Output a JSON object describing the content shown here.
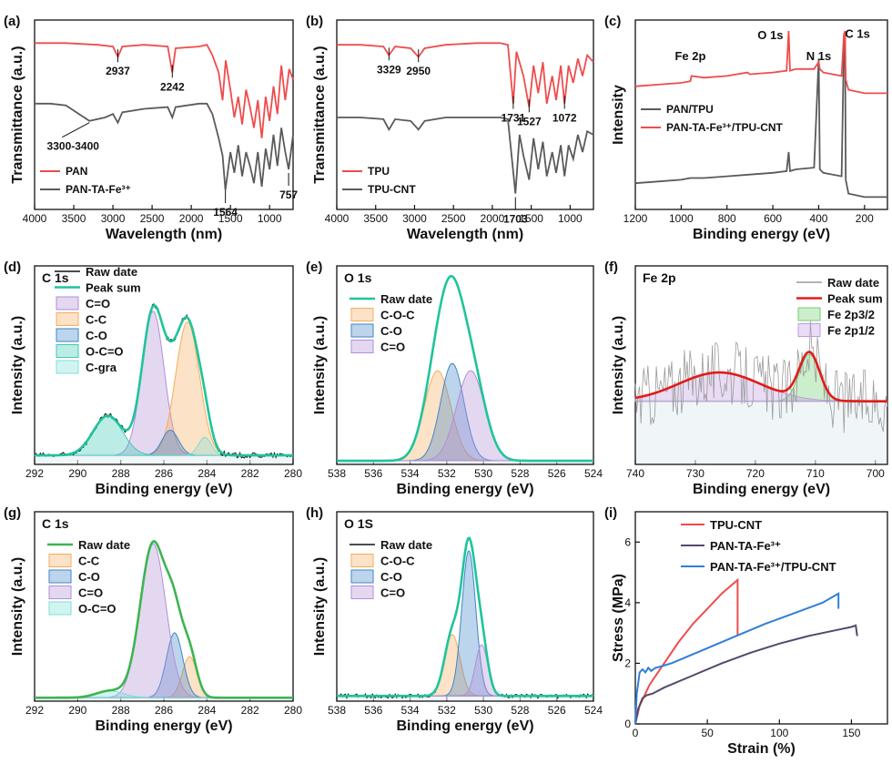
{
  "chart_data": [
    {
      "panel_label": "(a)",
      "type": "line",
      "xlabel": "Wavelength (nm)",
      "ylabel": "Transmittance (a.u.)",
      "xlim": [
        4000,
        700
      ],
      "xticks": [
        "4000",
        "3500",
        "3000",
        "2500",
        "2000",
        "1500",
        "1000"
      ],
      "legend": [
        "PAN",
        "PAN-TA-Fe³⁺"
      ],
      "legend_position": "bottom-left",
      "series": [
        {
          "name": "PAN",
          "color": "#ef4c4c",
          "x": [
            4000,
            3600,
            3200,
            3000,
            2937,
            2880,
            2600,
            2300,
            2242,
            2200,
            1900,
            1800,
            1730,
            1650,
            1600,
            1560,
            1500,
            1450,
            1400,
            1350,
            1300,
            1250,
            1200,
            1150,
            1100,
            1050,
            1000,
            950,
            900,
            850,
            800,
            750,
            700
          ],
          "y": [
            0.93,
            0.93,
            0.92,
            0.91,
            0.85,
            0.91,
            0.92,
            0.91,
            0.76,
            0.9,
            0.91,
            0.92,
            0.86,
            0.76,
            0.6,
            0.83,
            0.66,
            0.5,
            0.62,
            0.46,
            0.66,
            0.56,
            0.44,
            0.6,
            0.38,
            0.62,
            0.48,
            0.68,
            0.52,
            0.8,
            0.6,
            0.78,
            0.72
          ]
        },
        {
          "name": "PAN-TA-Fe³⁺",
          "color": "#5a5a5a",
          "x": [
            4000,
            3800,
            3600,
            3400,
            3300,
            3100,
            3000,
            2937,
            2880,
            2600,
            2300,
            2242,
            2200,
            1900,
            1800,
            1730,
            1650,
            1600,
            1564,
            1500,
            1450,
            1400,
            1350,
            1300,
            1250,
            1200,
            1150,
            1100,
            1050,
            1000,
            950,
            900,
            850,
            800,
            757,
            700
          ],
          "y": [
            0.58,
            0.58,
            0.57,
            0.51,
            0.48,
            0.5,
            0.52,
            0.47,
            0.53,
            0.55,
            0.56,
            0.5,
            0.56,
            0.58,
            0.58,
            0.52,
            0.38,
            0.28,
            0.08,
            0.3,
            0.18,
            0.34,
            0.16,
            0.3,
            0.22,
            0.12,
            0.3,
            0.1,
            0.32,
            0.2,
            0.4,
            0.22,
            0.44,
            0.3,
            0.2,
            0.4
          ]
        }
      ],
      "annotations": [
        "2937",
        "2242",
        "3300-3400",
        "1564",
        "757"
      ]
    },
    {
      "panel_label": "(b)",
      "type": "line",
      "xlabel": "Wavelength (nm)",
      "ylabel": "Transmittance (a.u.)",
      "xlim": [
        4000,
        700
      ],
      "xticks": [
        "4000",
        "3500",
        "3000",
        "2500",
        "2000",
        "1500",
        "1000"
      ],
      "legend": [
        "TPU",
        "TPU-CNT"
      ],
      "legend_position": "bottom-left",
      "series": [
        {
          "name": "TPU",
          "color": "#ef4c4c",
          "x": [
            4000,
            3700,
            3400,
            3329,
            3250,
            3050,
            2950,
            2870,
            2600,
            2200,
            1900,
            1800,
            1731,
            1690,
            1600,
            1527,
            1470,
            1410,
            1350,
            1300,
            1230,
            1180,
            1120,
            1072,
            1020,
            960,
            900,
            840,
            780,
            700
          ],
          "y": [
            0.92,
            0.92,
            0.91,
            0.86,
            0.91,
            0.9,
            0.85,
            0.9,
            0.92,
            0.93,
            0.93,
            0.92,
            0.58,
            0.88,
            0.74,
            0.56,
            0.8,
            0.64,
            0.82,
            0.58,
            0.74,
            0.6,
            0.8,
            0.58,
            0.8,
            0.7,
            0.84,
            0.74,
            0.86,
            0.82
          ]
        },
        {
          "name": "TPU-CNT",
          "color": "#5a5a5a",
          "x": [
            4000,
            3700,
            3400,
            3329,
            3250,
            3050,
            2950,
            2870,
            2600,
            2200,
            1900,
            1800,
            1703,
            1650,
            1600,
            1527,
            1470,
            1410,
            1350,
            1300,
            1230,
            1180,
            1120,
            1072,
            1020,
            960,
            900,
            840,
            780,
            700
          ],
          "y": [
            0.5,
            0.5,
            0.49,
            0.43,
            0.49,
            0.48,
            0.43,
            0.48,
            0.5,
            0.5,
            0.5,
            0.49,
            0.06,
            0.4,
            0.28,
            0.14,
            0.38,
            0.2,
            0.36,
            0.16,
            0.3,
            0.18,
            0.34,
            0.16,
            0.34,
            0.26,
            0.4,
            0.3,
            0.42,
            0.4
          ]
        }
      ],
      "annotations": [
        "3329",
        "2950",
        "1731",
        "1527",
        "1072",
        "1703"
      ]
    },
    {
      "panel_label": "(c)",
      "type": "line",
      "xlabel": "Binding energy (eV)",
      "ylabel": "Intensity",
      "xlim": [
        1200,
        100
      ],
      "xticks": [
        "1200",
        "1000",
        "800",
        "600",
        "400",
        "200"
      ],
      "legend": [
        "PAN/TPU",
        "PAN-TA-Fe³⁺/TPU-CNT"
      ],
      "legend_position": "center-left",
      "series": [
        {
          "name": "PAN/TPU",
          "color": "#5a5a5a",
          "x": [
            1200,
            1100,
            1000,
            960,
            900,
            800,
            700,
            600,
            540,
            531,
            525,
            500,
            420,
            400,
            395,
            380,
            300,
            290,
            285,
            282,
            270,
            200,
            100
          ],
          "y": [
            0.12,
            0.13,
            0.14,
            0.15,
            0.15,
            0.16,
            0.17,
            0.18,
            0.19,
            0.3,
            0.19,
            0.2,
            0.21,
            0.84,
            0.2,
            0.18,
            0.16,
            0.92,
            0.96,
            0.14,
            0.06,
            0.04,
            0.04
          ]
        },
        {
          "name": "PAN-TA-Fe³⁺/TPU-CNT",
          "color": "#ef4c4c",
          "x": [
            1200,
            1100,
            1000,
            960,
            955,
            900,
            800,
            711,
            700,
            600,
            540,
            531,
            525,
            500,
            420,
            400,
            395,
            380,
            300,
            290,
            285,
            282,
            270,
            200,
            100
          ],
          "y": [
            0.68,
            0.69,
            0.7,
            0.71,
            0.74,
            0.73,
            0.74,
            0.76,
            0.75,
            0.76,
            0.77,
            1.0,
            0.77,
            0.78,
            0.78,
            0.82,
            0.78,
            0.76,
            0.74,
            0.98,
            1.0,
            0.72,
            0.66,
            0.64,
            0.64
          ]
        }
      ],
      "peak_labels": [
        "O 1s",
        "C 1s",
        "Fe 2p",
        "N 1s"
      ]
    },
    {
      "panel_label": "(d)",
      "type": "area",
      "title": "C 1s",
      "xlabel": "Binding energy (eV)",
      "ylabel": "Intensity (a.u.)",
      "xlim": [
        292,
        280
      ],
      "xticks": [
        "292",
        "290",
        "288",
        "286",
        "284",
        "282",
        "280"
      ],
      "legend": [
        "Raw date",
        "Peak sum",
        "C=O",
        "C-C",
        "C-O",
        "O-C=O",
        "C-gra"
      ],
      "legend_position": "top-left",
      "baseline": 0.05,
      "peaks": [
        {
          "name": "C=O",
          "center": 286.5,
          "fwhm": 1.2,
          "height": 0.8,
          "color": "#b28ed8"
        },
        {
          "name": "C-C",
          "center": 284.9,
          "fwhm": 1.3,
          "height": 0.74,
          "color": "#f5ad5b"
        },
        {
          "name": "C-O",
          "center": 285.7,
          "fwhm": 0.9,
          "height": 0.14,
          "color": "#3f86c8"
        },
        {
          "name": "O-C=O",
          "center": 288.6,
          "fwhm": 1.6,
          "height": 0.22,
          "color": "#40c8b8"
        },
        {
          "name": "C-gra",
          "center": 284.1,
          "fwhm": 0.7,
          "height": 0.1,
          "color": "#7ee0d8"
        }
      ],
      "raw": true,
      "sum_color": "#1ec49c"
    },
    {
      "panel_label": "(e)",
      "type": "area",
      "title": "O 1s",
      "xlabel": "Binding energy (eV)",
      "ylabel": "Intensity (a.u.)",
      "xlim": [
        538,
        524
      ],
      "xticks": [
        "538",
        "536",
        "534",
        "532",
        "530",
        "528",
        "526",
        "524"
      ],
      "legend": [
        "Raw date",
        "C-O-C",
        "C-O",
        "C=O"
      ],
      "legend_position": "top-left",
      "baseline": 0.02,
      "peaks": [
        {
          "name": "C-O-C",
          "center": 532.5,
          "fwhm": 1.7,
          "height": 0.5,
          "color": "#f5ad5b"
        },
        {
          "name": "C-O",
          "center": 531.7,
          "fwhm": 1.5,
          "height": 0.54,
          "color": "#3f86c8"
        },
        {
          "name": "C=O",
          "center": 530.7,
          "fwhm": 1.8,
          "height": 0.5,
          "color": "#b28ed8"
        }
      ],
      "raw": false,
      "sum_color": "#1ec49c"
    },
    {
      "panel_label": "(f)",
      "type": "area",
      "title": "Fe 2p",
      "xlabel": "Binding energy (eV)",
      "ylabel": "Intensity (a.u.)",
      "xlim": [
        740,
        698
      ],
      "xticks": [
        "740",
        "730",
        "720",
        "710",
        "700"
      ],
      "legend": [
        "Raw date",
        "Peak sum",
        "Fe 2p3/2",
        "Fe 2p1/2"
      ],
      "legend_position": "top-right",
      "baseline": 0.35,
      "peaks": [
        {
          "name": "Fe 2p3/2",
          "center": 711,
          "fwhm": 4.0,
          "height": 0.26,
          "color": "#6fcf6f"
        },
        {
          "name": "Fe 2p1/2",
          "center": 726,
          "fwhm": 16,
          "height": 0.16,
          "color": "#c09ae0"
        }
      ],
      "raw": true,
      "sum_color": "#e31a1a"
    },
    {
      "panel_label": "(g)",
      "type": "area",
      "title": "C 1s",
      "xlabel": "Binding energy (eV)",
      "ylabel": "Intensity (a.u.)",
      "xlim": [
        292,
        280
      ],
      "xticks": [
        "292",
        "290",
        "288",
        "286",
        "284",
        "282",
        "280"
      ],
      "legend": [
        "Raw date",
        "C-C",
        "C-O",
        "C=O",
        "O-C=O"
      ],
      "legend_position": "top-left",
      "baseline": 0.02,
      "peaks": [
        {
          "name": "C-C",
          "center": 284.8,
          "fwhm": 0.8,
          "height": 0.24,
          "color": "#f5ad5b"
        },
        {
          "name": "C-O",
          "center": 285.5,
          "fwhm": 0.9,
          "height": 0.38,
          "color": "#3f86c8"
        },
        {
          "name": "C=O",
          "center": 286.5,
          "fwhm": 1.4,
          "height": 0.9,
          "color": "#b28ed8"
        },
        {
          "name": "O-C=O",
          "center": 288.5,
          "fwhm": 1.5,
          "height": 0.04,
          "color": "#7ee0d8"
        }
      ],
      "raw": false,
      "sum_color": "#3cb550"
    },
    {
      "panel_label": "(h)",
      "type": "area",
      "title": "O 1S",
      "xlabel": "Binding energy (eV)",
      "ylabel": "Intensity (a.u.)",
      "xlim": [
        538,
        524
      ],
      "xticks": [
        "538",
        "536",
        "534",
        "532",
        "530",
        "528",
        "526",
        "524"
      ],
      "legend": [
        "Raw date",
        "C-O-C",
        "C-O",
        "C=O"
      ],
      "legend_position": "top-left",
      "baseline": 0.03,
      "peaks": [
        {
          "name": "C-O-C",
          "center": 531.7,
          "fwhm": 1.0,
          "height": 0.36,
          "color": "#f5ad5b"
        },
        {
          "name": "C-O",
          "center": 530.8,
          "fwhm": 0.9,
          "height": 0.85,
          "color": "#3f86c8"
        },
        {
          "name": "C=O",
          "center": 530.1,
          "fwhm": 0.8,
          "height": 0.3,
          "color": "#b28ed8"
        }
      ],
      "raw": true,
      "sum_color": "#1ec49c"
    },
    {
      "panel_label": "(i)",
      "type": "line",
      "xlabel": "Strain (%)",
      "ylabel": "Stress (MPa)",
      "xlim": [
        0,
        175
      ],
      "ylim": [
        0,
        7
      ],
      "xticks": [
        "0",
        "50",
        "100",
        "150"
      ],
      "yticks": [
        "0",
        "2",
        "4",
        "6"
      ],
      "legend": [
        "TPU-CNT",
        "PAN-TA-Fe³⁺",
        "PAN-TA-Fe³⁺/TPU-CNT"
      ],
      "legend_position": "top",
      "series": [
        {
          "name": "TPU-CNT",
          "color": "#ef4c4c",
          "x": [
            0,
            3,
            10,
            20,
            30,
            40,
            50,
            60,
            71,
            71
          ],
          "y": [
            0,
            0.6,
            1.3,
            2.0,
            2.7,
            3.3,
            3.8,
            4.3,
            4.75,
            2.9
          ]
        },
        {
          "name": "PAN-TA-Fe³⁺",
          "color": "#55486a",
          "x": [
            0,
            2,
            5,
            8,
            12,
            20,
            40,
            60,
            80,
            100,
            120,
            140,
            150,
            153,
            154
          ],
          "y": [
            0,
            0.5,
            0.85,
            0.95,
            1.0,
            1.2,
            1.6,
            2.0,
            2.35,
            2.65,
            2.9,
            3.1,
            3.2,
            3.25,
            2.9
          ]
        },
        {
          "name": "PAN-TA-Fe³⁺/TPU-CNT",
          "color": "#2f7fd8",
          "x": [
            0,
            1,
            3,
            5,
            7,
            9,
            11,
            14,
            18,
            25,
            35,
            50,
            70,
            90,
            110,
            130,
            141,
            141
          ],
          "y": [
            0,
            1.0,
            1.7,
            1.8,
            1.7,
            1.85,
            1.75,
            1.85,
            1.9,
            2.0,
            2.2,
            2.5,
            2.9,
            3.3,
            3.65,
            4.0,
            4.3,
            3.8
          ]
        }
      ]
    }
  ]
}
